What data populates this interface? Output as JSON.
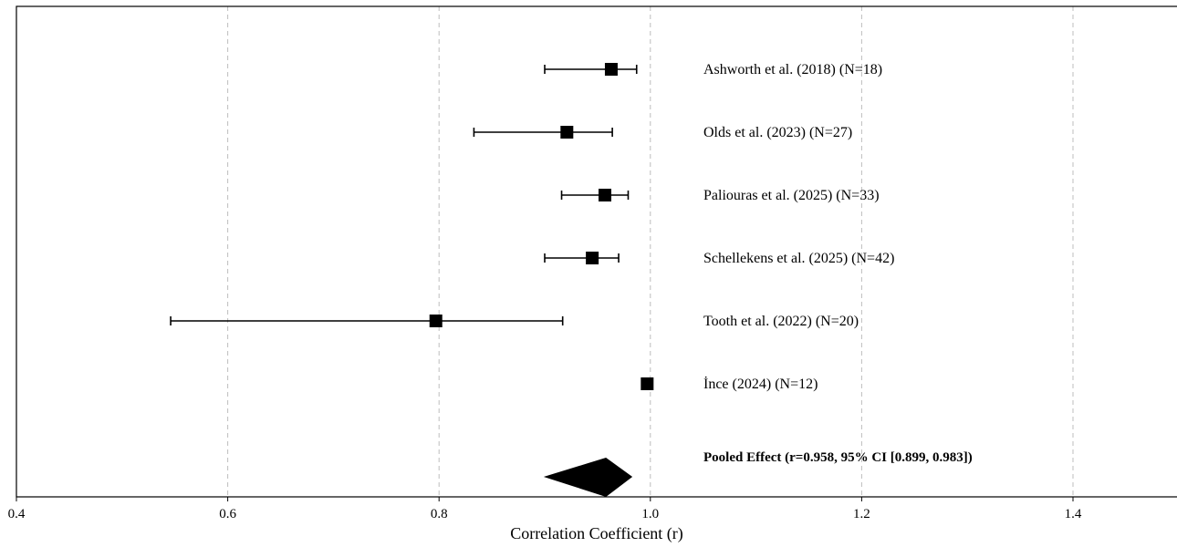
{
  "chart_data": {
    "type": "forest",
    "xlabel": "Correlation Coefficient (r)",
    "xlim": [
      0.4,
      1.5
    ],
    "xticks": [
      0.4,
      0.6,
      0.8,
      1.0,
      1.2,
      1.4
    ],
    "xtick_labels": [
      "0.4",
      "0.6",
      "0.8",
      "1.0",
      "1.2",
      "1.4"
    ],
    "grid": "vertical-dashed",
    "studies": [
      {
        "label": "Ashworth et al. (2018) (N=18)",
        "r": 0.963,
        "ci_low": 0.9,
        "ci_high": 0.987
      },
      {
        "label": "Olds et al. (2023) (N=27)",
        "r": 0.921,
        "ci_low": 0.833,
        "ci_high": 0.964
      },
      {
        "label": "Paliouras et al. (2025) (N=33)",
        "r": 0.957,
        "ci_low": 0.916,
        "ci_high": 0.979
      },
      {
        "label": "Schellekens et al. (2025) (N=42)",
        "r": 0.945,
        "ci_low": 0.9,
        "ci_high": 0.97
      },
      {
        "label": "Tooth et al. (2022) (N=20)",
        "r": 0.797,
        "ci_low": 0.546,
        "ci_high": 0.917
      },
      {
        "label": "İnce (2024) (N=12)",
        "r": 0.997,
        "ci_low": null,
        "ci_high": null
      }
    ],
    "pooled": {
      "label": "Pooled Effect (r=0.958, 95% CI [0.899, 0.983])",
      "r": 0.958,
      "ci_low": 0.899,
      "ci_high": 0.983
    }
  }
}
